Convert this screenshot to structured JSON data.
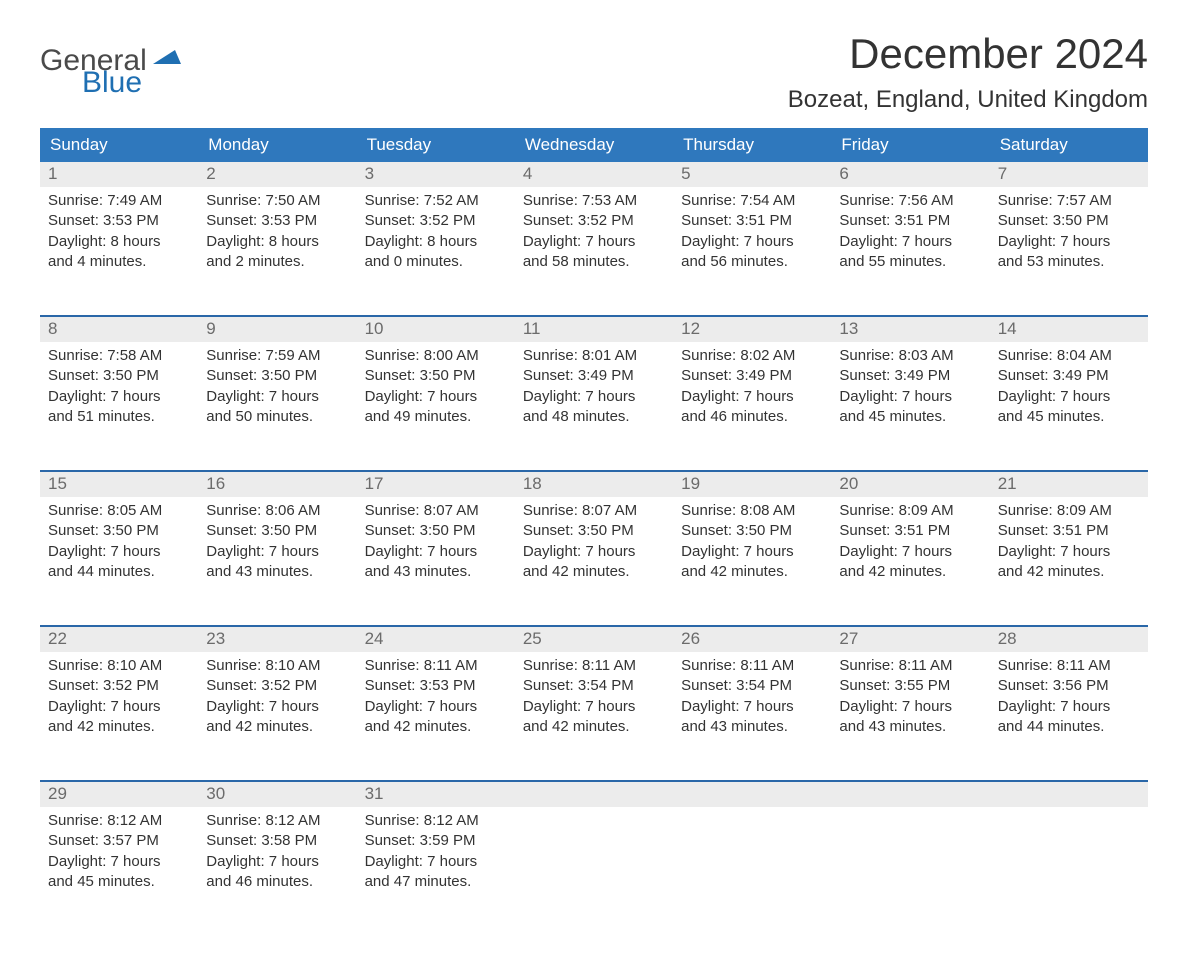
{
  "logo": {
    "word1": "General",
    "word2": "Blue"
  },
  "title": "December 2024",
  "location": "Bozeat, England, United Kingdom",
  "colors": {
    "header_bg": "#2f78bd",
    "header_text": "#ffffff",
    "week_border": "#2a67a8",
    "num_strip_bg": "#ececec",
    "num_text": "#6b6b6b",
    "body_text": "#333333",
    "logo_gray": "#4a4a4a",
    "logo_blue": "#1f6fb2"
  },
  "day_names": [
    "Sunday",
    "Monday",
    "Tuesday",
    "Wednesday",
    "Thursday",
    "Friday",
    "Saturday"
  ],
  "weeks": [
    [
      {
        "n": "1",
        "sunrise": "7:49 AM",
        "sunset": "3:53 PM",
        "dl1": "8 hours",
        "dl2": "and 4 minutes."
      },
      {
        "n": "2",
        "sunrise": "7:50 AM",
        "sunset": "3:53 PM",
        "dl1": "8 hours",
        "dl2": "and 2 minutes."
      },
      {
        "n": "3",
        "sunrise": "7:52 AM",
        "sunset": "3:52 PM",
        "dl1": "8 hours",
        "dl2": "and 0 minutes."
      },
      {
        "n": "4",
        "sunrise": "7:53 AM",
        "sunset": "3:52 PM",
        "dl1": "7 hours",
        "dl2": "and 58 minutes."
      },
      {
        "n": "5",
        "sunrise": "7:54 AM",
        "sunset": "3:51 PM",
        "dl1": "7 hours",
        "dl2": "and 56 minutes."
      },
      {
        "n": "6",
        "sunrise": "7:56 AM",
        "sunset": "3:51 PM",
        "dl1": "7 hours",
        "dl2": "and 55 minutes."
      },
      {
        "n": "7",
        "sunrise": "7:57 AM",
        "sunset": "3:50 PM",
        "dl1": "7 hours",
        "dl2": "and 53 minutes."
      }
    ],
    [
      {
        "n": "8",
        "sunrise": "7:58 AM",
        "sunset": "3:50 PM",
        "dl1": "7 hours",
        "dl2": "and 51 minutes."
      },
      {
        "n": "9",
        "sunrise": "7:59 AM",
        "sunset": "3:50 PM",
        "dl1": "7 hours",
        "dl2": "and 50 minutes."
      },
      {
        "n": "10",
        "sunrise": "8:00 AM",
        "sunset": "3:50 PM",
        "dl1": "7 hours",
        "dl2": "and 49 minutes."
      },
      {
        "n": "11",
        "sunrise": "8:01 AM",
        "sunset": "3:49 PM",
        "dl1": "7 hours",
        "dl2": "and 48 minutes."
      },
      {
        "n": "12",
        "sunrise": "8:02 AM",
        "sunset": "3:49 PM",
        "dl1": "7 hours",
        "dl2": "and 46 minutes."
      },
      {
        "n": "13",
        "sunrise": "8:03 AM",
        "sunset": "3:49 PM",
        "dl1": "7 hours",
        "dl2": "and 45 minutes."
      },
      {
        "n": "14",
        "sunrise": "8:04 AM",
        "sunset": "3:49 PM",
        "dl1": "7 hours",
        "dl2": "and 45 minutes."
      }
    ],
    [
      {
        "n": "15",
        "sunrise": "8:05 AM",
        "sunset": "3:50 PM",
        "dl1": "7 hours",
        "dl2": "and 44 minutes."
      },
      {
        "n": "16",
        "sunrise": "8:06 AM",
        "sunset": "3:50 PM",
        "dl1": "7 hours",
        "dl2": "and 43 minutes."
      },
      {
        "n": "17",
        "sunrise": "8:07 AM",
        "sunset": "3:50 PM",
        "dl1": "7 hours",
        "dl2": "and 43 minutes."
      },
      {
        "n": "18",
        "sunrise": "8:07 AM",
        "sunset": "3:50 PM",
        "dl1": "7 hours",
        "dl2": "and 42 minutes."
      },
      {
        "n": "19",
        "sunrise": "8:08 AM",
        "sunset": "3:50 PM",
        "dl1": "7 hours",
        "dl2": "and 42 minutes."
      },
      {
        "n": "20",
        "sunrise": "8:09 AM",
        "sunset": "3:51 PM",
        "dl1": "7 hours",
        "dl2": "and 42 minutes."
      },
      {
        "n": "21",
        "sunrise": "8:09 AM",
        "sunset": "3:51 PM",
        "dl1": "7 hours",
        "dl2": "and 42 minutes."
      }
    ],
    [
      {
        "n": "22",
        "sunrise": "8:10 AM",
        "sunset": "3:52 PM",
        "dl1": "7 hours",
        "dl2": "and 42 minutes."
      },
      {
        "n": "23",
        "sunrise": "8:10 AM",
        "sunset": "3:52 PM",
        "dl1": "7 hours",
        "dl2": "and 42 minutes."
      },
      {
        "n": "24",
        "sunrise": "8:11 AM",
        "sunset": "3:53 PM",
        "dl1": "7 hours",
        "dl2": "and 42 minutes."
      },
      {
        "n": "25",
        "sunrise": "8:11 AM",
        "sunset": "3:54 PM",
        "dl1": "7 hours",
        "dl2": "and 42 minutes."
      },
      {
        "n": "26",
        "sunrise": "8:11 AM",
        "sunset": "3:54 PM",
        "dl1": "7 hours",
        "dl2": "and 43 minutes."
      },
      {
        "n": "27",
        "sunrise": "8:11 AM",
        "sunset": "3:55 PM",
        "dl1": "7 hours",
        "dl2": "and 43 minutes."
      },
      {
        "n": "28",
        "sunrise": "8:11 AM",
        "sunset": "3:56 PM",
        "dl1": "7 hours",
        "dl2": "and 44 minutes."
      }
    ],
    [
      {
        "n": "29",
        "sunrise": "8:12 AM",
        "sunset": "3:57 PM",
        "dl1": "7 hours",
        "dl2": "and 45 minutes."
      },
      {
        "n": "30",
        "sunrise": "8:12 AM",
        "sunset": "3:58 PM",
        "dl1": "7 hours",
        "dl2": "and 46 minutes."
      },
      {
        "n": "31",
        "sunrise": "8:12 AM",
        "sunset": "3:59 PM",
        "dl1": "7 hours",
        "dl2": "and 47 minutes."
      },
      {
        "n": "",
        "empty": true
      },
      {
        "n": "",
        "empty": true
      },
      {
        "n": "",
        "empty": true
      },
      {
        "n": "",
        "empty": true
      }
    ]
  ],
  "labels": {
    "sunrise": "Sunrise: ",
    "sunset": "Sunset: ",
    "daylight": "Daylight: "
  }
}
